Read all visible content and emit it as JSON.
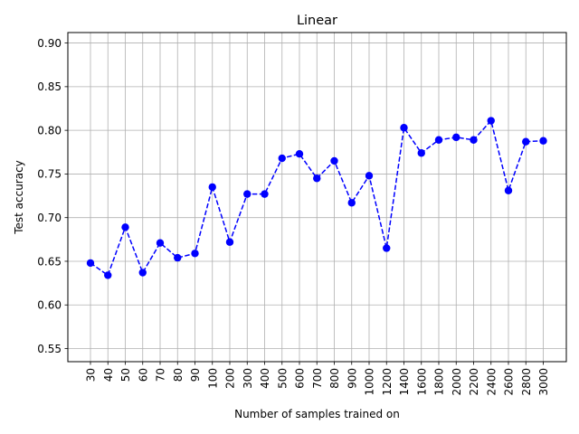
{
  "chart_data": {
    "type": "line",
    "title": "Linear",
    "xlabel": "Number of samples trained on",
    "ylabel": "Test accuracy",
    "categories": [
      "30",
      "40",
      "50",
      "60",
      "70",
      "80",
      "90",
      "100",
      "200",
      "300",
      "400",
      "500",
      "600",
      "700",
      "800",
      "900",
      "1000",
      "1200",
      "1400",
      "1600",
      "1800",
      "2000",
      "2200",
      "2400",
      "2600",
      "2800",
      "3000"
    ],
    "series": [
      {
        "values": [
          0.648,
          0.634,
          0.689,
          0.637,
          0.671,
          0.654,
          0.659,
          0.735,
          0.672,
          0.727,
          0.727,
          0.768,
          0.773,
          0.745,
          0.765,
          0.717,
          0.748,
          0.665,
          0.803,
          0.774,
          0.789,
          0.792,
          0.789,
          0.811,
          0.731,
          0.787,
          0.788
        ],
        "color": "#0000ff",
        "line_style": "dashed",
        "marker": "circle"
      }
    ],
    "ylim": [
      0.535,
      0.912
    ],
    "yticks": [
      0.55,
      0.6,
      0.65,
      0.7,
      0.75,
      0.8,
      0.85,
      0.9
    ],
    "ytick_labels": [
      "0.55",
      "0.60",
      "0.65",
      "0.70",
      "0.75",
      "0.80",
      "0.85",
      "0.90"
    ],
    "grid": true,
    "xtick_rotation": "vertical"
  }
}
